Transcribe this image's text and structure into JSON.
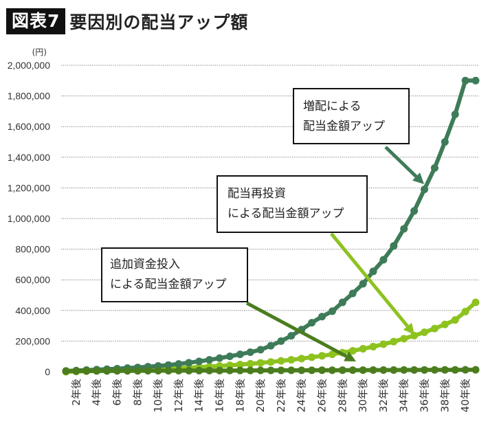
{
  "header": {
    "badge": "図表7",
    "title": "要因別の配当アップ額"
  },
  "chart_data": {
    "type": "line",
    "title": "要因別の配当アップ額",
    "ylabel": "(円)",
    "xlabel": "",
    "ylim": [
      0,
      2000000
    ],
    "yticks": [
      0,
      200000,
      400000,
      600000,
      800000,
      1000000,
      1200000,
      1400000,
      1600000,
      1800000,
      2000000
    ],
    "ytick_labels": [
      "0",
      "200,000",
      "400,000",
      "600,000",
      "800,000",
      "1,000,000",
      "1,200,000",
      "1,400,000",
      "1,600,000",
      "1,800,000",
      "2,000,000"
    ],
    "grid": true,
    "x": [
      1,
      2,
      3,
      4,
      5,
      6,
      7,
      8,
      9,
      10,
      11,
      12,
      13,
      14,
      15,
      16,
      17,
      18,
      19,
      20,
      21,
      22,
      23,
      24,
      25,
      26,
      27,
      28,
      29,
      30,
      31,
      32,
      33,
      34,
      35,
      36,
      37,
      38,
      39,
      40,
      41
    ],
    "xticks": [
      2,
      4,
      6,
      8,
      10,
      12,
      14,
      16,
      18,
      20,
      22,
      24,
      26,
      28,
      30,
      32,
      34,
      36,
      38,
      40
    ],
    "xtick_labels": [
      "2年後",
      "4年後",
      "6年後",
      "8年後",
      "10年後",
      "12年後",
      "14年後",
      "16年後",
      "18年後",
      "20年後",
      "22年後",
      "24年後",
      "26年後",
      "28年後",
      "30年後",
      "32年後",
      "34年後",
      "36年後",
      "38年後",
      "40年後"
    ],
    "series": [
      {
        "name": "追加資金投入による配当金額アップ",
        "color": "#4b7d1f",
        "values": [
          5000,
          5200,
          5400,
          5600,
          5800,
          6000,
          6200,
          6400,
          6600,
          6800,
          7000,
          7200,
          7400,
          7600,
          7800,
          8000,
          8200,
          8400,
          8600,
          8800,
          9000,
          9200,
          9400,
          9600,
          9800,
          10000,
          10200,
          10400,
          10600,
          10800,
          11000,
          11200,
          11400,
          11600,
          11800,
          12000,
          12200,
          12400,
          12600,
          12800,
          13000
        ]
      },
      {
        "name": "配当再投資による配当金額アップ",
        "color": "#8dc21f",
        "values": [
          0,
          2000,
          4000,
          6000,
          8000,
          10000,
          12000,
          14000,
          16000,
          18000,
          21000,
          24000,
          27000,
          30000,
          34000,
          38000,
          42000,
          47000,
          52000,
          58000,
          64000,
          71000,
          78000,
          86000,
          95000,
          104000,
          114000,
          125000,
          137000,
          150000,
          164000,
          180000,
          197000,
          216000,
          236000,
          258000,
          282000,
          309000,
          338000,
          393000,
          453000
        ]
      },
      {
        "name": "増配による配当金額アップ",
        "color": "#3e7b58",
        "values": [
          5000,
          8000,
          11000,
          14000,
          17000,
          20000,
          24000,
          28000,
          33000,
          38000,
          44000,
          51000,
          59000,
          68000,
          78000,
          89000,
          101000,
          114000,
          128000,
          144000,
          170000,
          200000,
          235000,
          275000,
          320000,
          360000,
          395000,
          453000,
          511000,
          574000,
          655000,
          731000,
          821000,
          933000,
          1050000,
          1190000,
          1330000,
          1500000,
          1680000,
          1900000,
          1900000
        ]
      }
    ],
    "annotations": [
      {
        "lines": [
          "増配による",
          "配当金額アップ"
        ],
        "target_series": "増配による配当金額アップ"
      },
      {
        "lines": [
          "配当再投資",
          "による配当金額アップ"
        ],
        "target_series": "配当再投資による配当金額アップ"
      },
      {
        "lines": [
          "追加資金投入",
          "による配当金額アップ"
        ],
        "target_series": "追加資金投入による配当金額アップ"
      }
    ]
  }
}
